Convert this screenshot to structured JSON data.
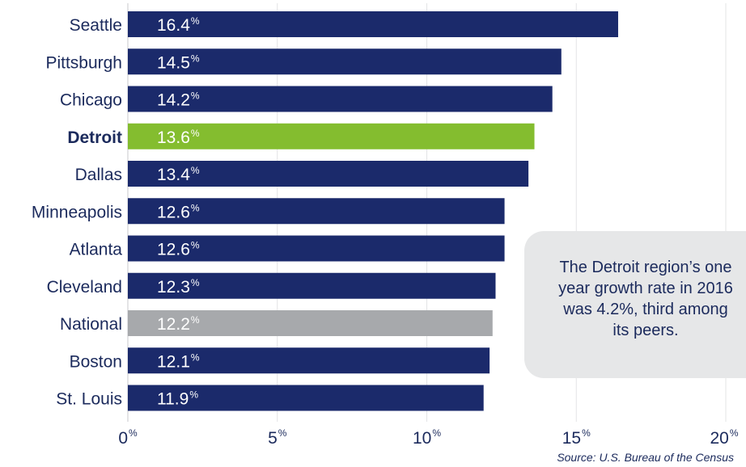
{
  "chart_data": {
    "type": "bar",
    "orientation": "horizontal",
    "categories": [
      "Seattle",
      "Pittsburgh",
      "Chicago",
      "Detroit",
      "Dallas",
      "Minneapolis",
      "Atlanta",
      "Cleveland",
      "National",
      "Boston",
      "St. Louis"
    ],
    "values": [
      16.4,
      14.5,
      14.2,
      13.6,
      13.4,
      12.6,
      12.6,
      12.3,
      12.2,
      12.1,
      11.9
    ],
    "value_labels": [
      "16.4",
      "14.5",
      "14.2",
      "13.6",
      "13.4",
      "12.6",
      "12.6",
      "12.3",
      "12.2",
      "12.1",
      "11.9"
    ],
    "value_suffix": "%",
    "highlight": {
      "Detroit": "#84bd2f",
      "National": "#a7a9ac"
    },
    "bold_categories": [
      "Detroit"
    ],
    "default_color": "#1b2a6b",
    "xlim": [
      0,
      20
    ],
    "x_ticks": [
      0,
      5,
      10,
      15,
      20
    ],
    "x_tick_labels": [
      "0",
      "5",
      "10",
      "15",
      "20"
    ],
    "x_tick_suffix": "%",
    "grid": true,
    "source": "Source: U.S. Bureau of the Census",
    "callout": {
      "lines": [
        "The Detroit region’s one",
        "year growth rate in 2016",
        "was 4.2%, third among",
        "its peers."
      ],
      "background": "#e6e7e8"
    }
  }
}
